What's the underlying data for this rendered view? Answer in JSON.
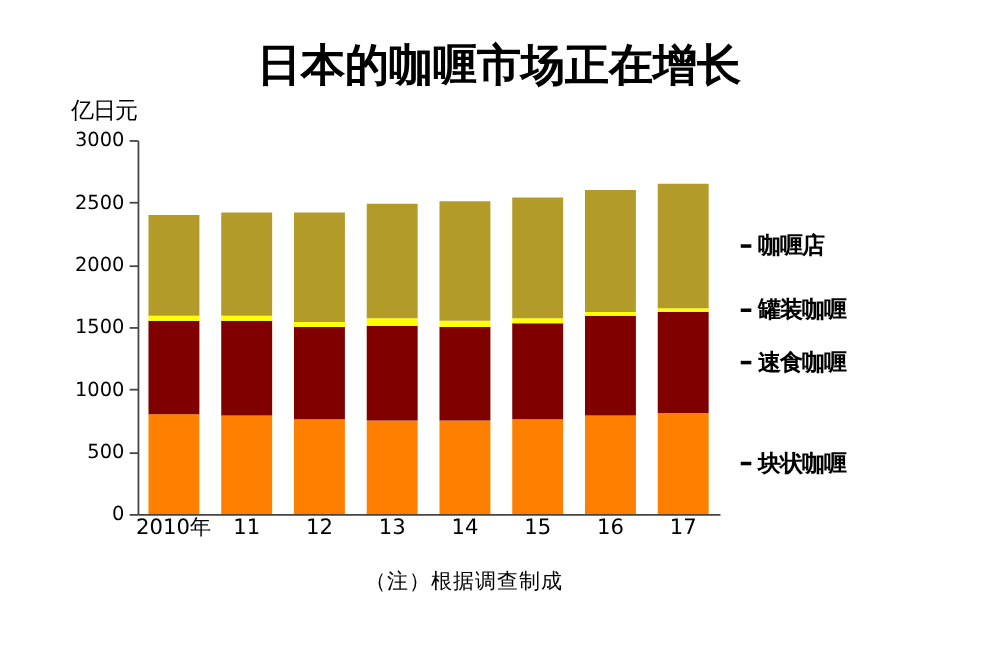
{
  "chart_data": {
    "type": "bar",
    "title": "日本的咖喱市场正在增长",
    "ylabel": "亿日元",
    "categories": [
      "2010年",
      "11",
      "12",
      "13",
      "14",
      "15",
      "16",
      "17"
    ],
    "stacked": true,
    "series": [
      {
        "name": "块状咖喱",
        "color": "#ff8000",
        "values": [
          800,
          790,
          760,
          750,
          750,
          760,
          790,
          810
        ]
      },
      {
        "name": "速食咖喱",
        "color": "#800000",
        "values": [
          750,
          760,
          740,
          760,
          750,
          770,
          800,
          810
        ]
      },
      {
        "name": "罐装咖喱",
        "color": "#ffff00",
        "values": [
          40,
          40,
          40,
          60,
          50,
          40,
          30,
          30
        ]
      },
      {
        "name": "咖喱店",
        "color": "#b39b2a",
        "values": [
          810,
          830,
          880,
          920,
          960,
          970,
          980,
          1000
        ]
      }
    ],
    "ylim": [
      0,
      3000
    ],
    "yticks": [
      0,
      500,
      1000,
      1500,
      2000,
      2500,
      3000
    ],
    "grid": false,
    "legend": "right",
    "annotations": [
      "（注）根据调查制成"
    ]
  }
}
